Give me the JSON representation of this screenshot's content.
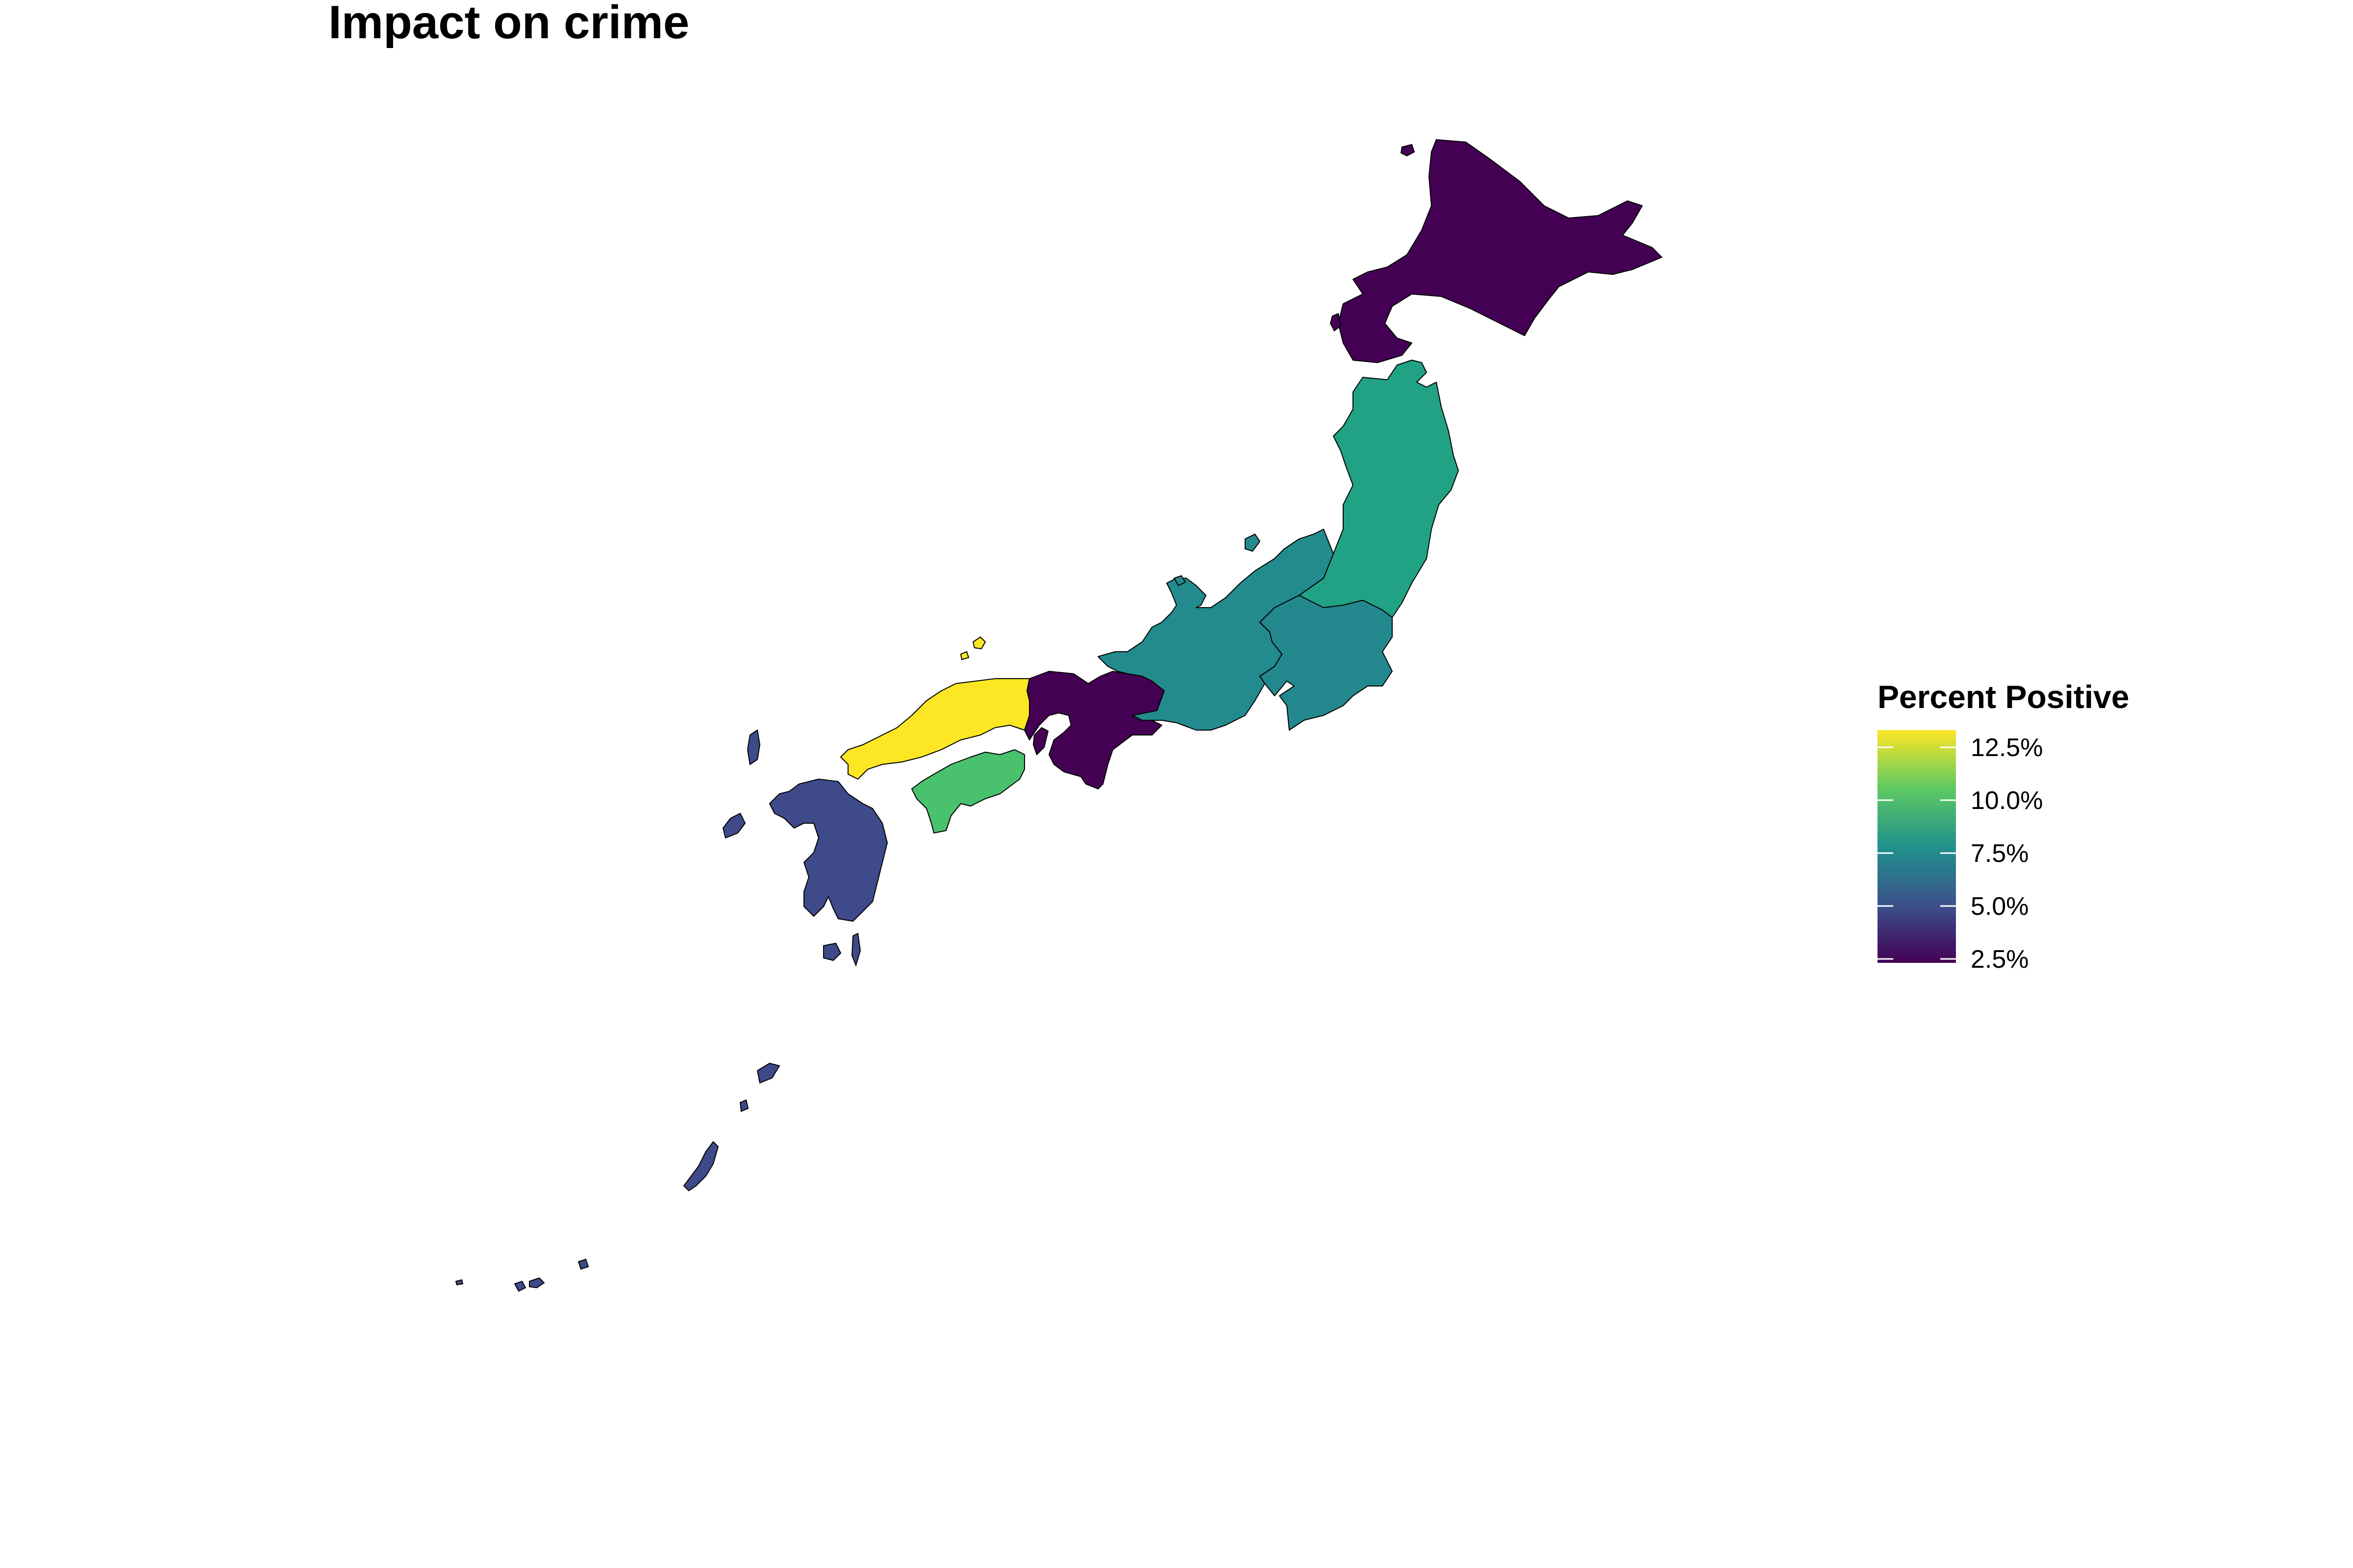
{
  "title": "Impact on crime",
  "legend": {
    "title": "Percent Positive",
    "labels": [
      "12.5%",
      "10.0%",
      "7.5%",
      "5.0%",
      "2.5%"
    ],
    "gradient_colors": [
      "#fde725",
      "#5ec962",
      "#21918c",
      "#3b528b",
      "#440154"
    ]
  },
  "regions": [
    {
      "name": "Hokkaido",
      "color": "#440154"
    },
    {
      "name": "Tohoku",
      "color": "#22a284"
    },
    {
      "name": "Kanto",
      "color": "#23888e"
    },
    {
      "name": "Chubu",
      "color": "#238a8d"
    },
    {
      "name": "Kinki",
      "color": "#440154"
    },
    {
      "name": "Chugoku",
      "color": "#fde725"
    },
    {
      "name": "Shikoku",
      "color": "#4ac16d"
    },
    {
      "name": "Kyushu",
      "color": "#3e4a89"
    }
  ]
}
